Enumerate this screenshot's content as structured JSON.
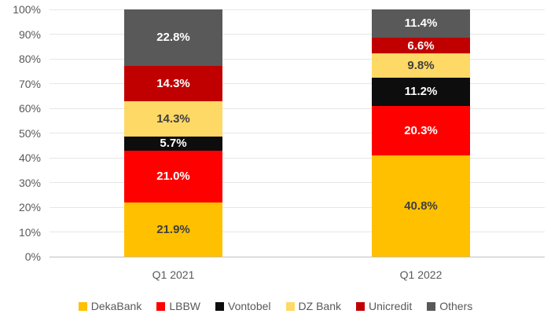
{
  "chart_data": {
    "type": "bar",
    "stacked": true,
    "orientation": "vertical",
    "categories": [
      "Q1 2021",
      "Q1 2022"
    ],
    "series": [
      {
        "name": "DekaBank",
        "color": "#FFC000",
        "label_color": "#3F3F3F",
        "values": [
          21.9,
          40.8
        ]
      },
      {
        "name": "LBBW",
        "color": "#FF0000",
        "label_color": "#FFFFFF",
        "values": [
          21.0,
          20.3
        ]
      },
      {
        "name": "Vontobel",
        "color": "#0D0D0D",
        "label_color": "#FFFFFF",
        "values": [
          5.7,
          11.2
        ]
      },
      {
        "name": "DZ Bank",
        "color": "#FFD966",
        "label_color": "#3F3F3F",
        "values": [
          14.3,
          9.8
        ]
      },
      {
        "name": "Unicredit",
        "color": "#C00000",
        "label_color": "#FFFFFF",
        "values": [
          14.3,
          6.6
        ]
      },
      {
        "name": "Others",
        "color": "#595959",
        "label_color": "#FFFFFF",
        "values": [
          22.8,
          11.4
        ]
      }
    ],
    "data_labels": [
      [
        "21.9%",
        "21.0%",
        "5.7%",
        "14.3%",
        "14.3%",
        "22.8%"
      ],
      [
        "40.8%",
        "20.3%",
        "11.2%",
        "9.8%",
        "6.6%",
        "11.4%"
      ]
    ],
    "y_ticks": [
      "0%",
      "10%",
      "20%",
      "30%",
      "40%",
      "50%",
      "60%",
      "70%",
      "80%",
      "90%",
      "100%"
    ],
    "ylim": [
      0,
      100
    ],
    "grid": true,
    "gridline_color": "#E6E6E6",
    "axis_line_color": "#BFBFBF",
    "tick_label_color": "#595959",
    "legend_position": "bottom",
    "title": "",
    "xlabel": "",
    "ylabel": ""
  }
}
